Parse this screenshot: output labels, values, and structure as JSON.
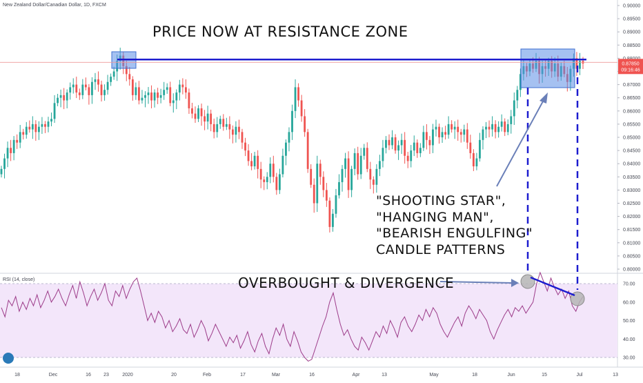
{
  "header": {
    "symbol_title": "New Zealand Dollar/Canadian Dollar, 1D, FXCM"
  },
  "rsi_header": {
    "label": "RSI (14, close)"
  },
  "price_badge": {
    "price": "0.87850",
    "countdown": "09:16:46",
    "color": "#ef5350"
  },
  "annotations": {
    "resistance": "PRICE NOW AT RESISTANCE ZONE",
    "patterns": [
      "\"SHOOTING STAR\",",
      "\"HANGING MAN\",",
      "\"BEARISH ENGULFING\"",
      "CANDLE PATTERNS"
    ],
    "overbought": "OVERBOUGHT & DIVERGENCE"
  },
  "colors": {
    "up": "#26a69a",
    "down": "#ef5350",
    "resistance_line": "#1c1ccf",
    "zone_fill": "#5b8ee6",
    "rsi_line": "#9c3b89",
    "rsi_band": "#f3e6fa",
    "arrow": "#6a7fb8"
  },
  "chart_data": [
    {
      "type": "candlestick",
      "title": "New Zealand Dollar/Canadian Dollar, 1D, FXCM",
      "ylim": [
        0.8,
        0.905
      ],
      "y_ticks": [
        "0.90000",
        "0.89500",
        "0.89000",
        "0.88500",
        "0.88000",
        "0.87500",
        "0.87000",
        "0.86500",
        "0.86000",
        "0.85500",
        "0.85000",
        "0.84500",
        "0.84000",
        "0.83500",
        "0.83000",
        "0.82500",
        "0.82000",
        "0.81500",
        "0.81000",
        "0.80500",
        "0.80000"
      ],
      "x_ticks": [
        "18",
        "Dec",
        "16",
        "23",
        "2020",
        "20",
        "Feb",
        "17",
        "Mar",
        "16",
        "Apr",
        "13",
        "May",
        "18",
        "Jun",
        "15",
        "Jul",
        "13"
      ],
      "resistance_level": 0.8795,
      "close_series": [
        0.838,
        0.842,
        0.846,
        0.844,
        0.849,
        0.848,
        0.852,
        0.851,
        0.854,
        0.853,
        0.855,
        0.852,
        0.854,
        0.855,
        0.854,
        0.856,
        0.857,
        0.863,
        0.865,
        0.866,
        0.864,
        0.867,
        0.869,
        0.87,
        0.867,
        0.866,
        0.87,
        0.869,
        0.866,
        0.871,
        0.872,
        0.87,
        0.866,
        0.868,
        0.871,
        0.873,
        0.875,
        0.879,
        0.881,
        0.877,
        0.874,
        0.872,
        0.866,
        0.869,
        0.864,
        0.865,
        0.866,
        0.867,
        0.864,
        0.867,
        0.865,
        0.866,
        0.868,
        0.869,
        0.863,
        0.864,
        0.867,
        0.87,
        0.869,
        0.867,
        0.861,
        0.859,
        0.857,
        0.861,
        0.858,
        0.856,
        0.859,
        0.855,
        0.852,
        0.855,
        0.857,
        0.854,
        0.855,
        0.853,
        0.851,
        0.854,
        0.852,
        0.848,
        0.845,
        0.841,
        0.839,
        0.843,
        0.838,
        0.834,
        0.833,
        0.835,
        0.84,
        0.835,
        0.83,
        0.836,
        0.843,
        0.848,
        0.852,
        0.86,
        0.869,
        0.864,
        0.858,
        0.852,
        0.838,
        0.832,
        0.825,
        0.84,
        0.835,
        0.83,
        0.826,
        0.816,
        0.821,
        0.828,
        0.833,
        0.838,
        0.842,
        0.83,
        0.838,
        0.844,
        0.836,
        0.843,
        0.846,
        0.838,
        0.834,
        0.832,
        0.838,
        0.841,
        0.846,
        0.849,
        0.847,
        0.85,
        0.845,
        0.847,
        0.849,
        0.843,
        0.841,
        0.845,
        0.848,
        0.844,
        0.846,
        0.852,
        0.849,
        0.847,
        0.853,
        0.854,
        0.85,
        0.852,
        0.851,
        0.855,
        0.853,
        0.854,
        0.852,
        0.851,
        0.853,
        0.848,
        0.844,
        0.839,
        0.842,
        0.849,
        0.853,
        0.854,
        0.853,
        0.855,
        0.852,
        0.854,
        0.856,
        0.852,
        0.855,
        0.858,
        0.864,
        0.868,
        0.874,
        0.877,
        0.875,
        0.878,
        0.876,
        0.879,
        0.874,
        0.877,
        0.876,
        0.879,
        0.875,
        0.878,
        0.873,
        0.877,
        0.874,
        0.871,
        0.876,
        0.88,
        0.876,
        0.879,
        0.878
      ]
    },
    {
      "type": "line",
      "title": "RSI (14, close)",
      "ylim": [
        25,
        80
      ],
      "y_ticks": [
        "70.00",
        "60.00",
        "50.00",
        "40.00",
        "30.00"
      ],
      "bands": [
        30,
        70
      ],
      "values": [
        57,
        52,
        61,
        58,
        63,
        55,
        60,
        56,
        62,
        58,
        64,
        57,
        61,
        66,
        60,
        63,
        67,
        62,
        58,
        64,
        69,
        62,
        71,
        65,
        58,
        63,
        67,
        61,
        65,
        70,
        61,
        58,
        66,
        63,
        69,
        62,
        67,
        71,
        73,
        66,
        58,
        50,
        54,
        49,
        55,
        52,
        46,
        50,
        44,
        47,
        51,
        45,
        43,
        48,
        41,
        45,
        50,
        46,
        39,
        43,
        48,
        44,
        40,
        36,
        41,
        38,
        42,
        35,
        39,
        44,
        37,
        33,
        39,
        43,
        36,
        32,
        40,
        46,
        42,
        48,
        40,
        36,
        44,
        39,
        33,
        30,
        28,
        29,
        35,
        41,
        47,
        52,
        60,
        65,
        56,
        48,
        42,
        45,
        40,
        36,
        34,
        41,
        38,
        34,
        39,
        44,
        41,
        47,
        43,
        50,
        46,
        41,
        49,
        52,
        47,
        44,
        48,
        53,
        50,
        56,
        52,
        57,
        54,
        48,
        44,
        41,
        45,
        49,
        52,
        47,
        54,
        58,
        55,
        51,
        56,
        53,
        50,
        44,
        40,
        45,
        49,
        53,
        56,
        52,
        57,
        55,
        58,
        54,
        57,
        60,
        70,
        76,
        71,
        66,
        73,
        68,
        64,
        67,
        62,
        66,
        58,
        55,
        60,
        63
      ]
    }
  ]
}
